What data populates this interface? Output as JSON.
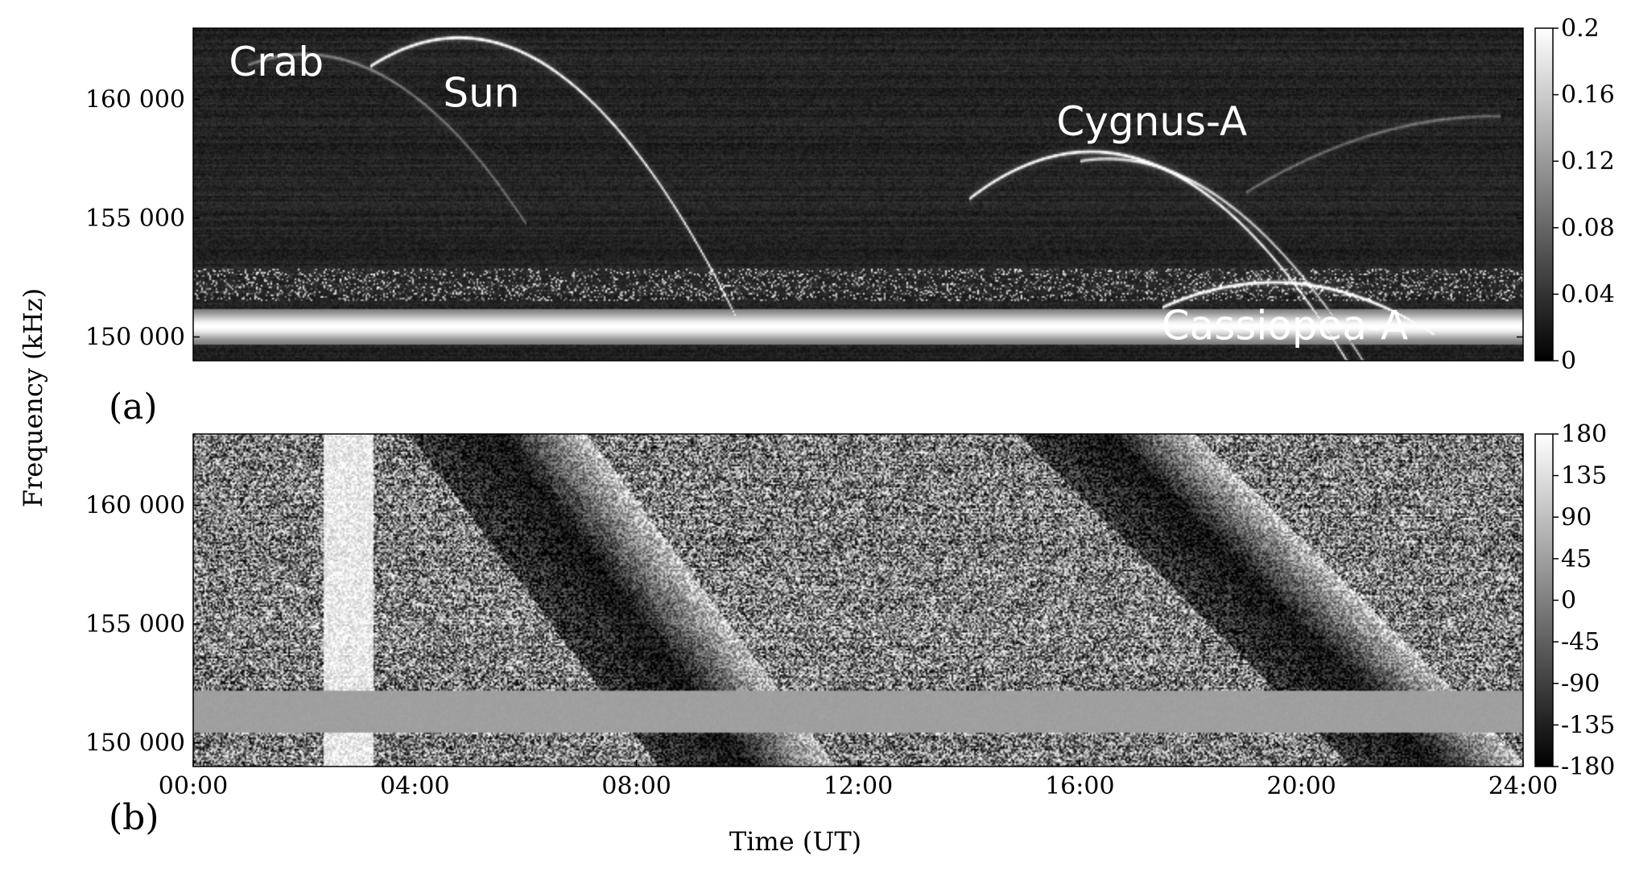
{
  "chart_data": [
    {
      "type": "heatmap",
      "panel_label": "(a)",
      "xlabel": "Time (UT)",
      "ylabel": "Frequency (kHz)",
      "xlim": [
        0,
        24
      ],
      "ylim": [
        149000,
        163000
      ],
      "x_ticks": [
        {
          "value": 0,
          "label": "00:00"
        },
        {
          "value": 4,
          "label": "04:00"
        },
        {
          "value": 8,
          "label": "08:00"
        },
        {
          "value": 12,
          "label": "12:00"
        },
        {
          "value": 16,
          "label": "16:00"
        },
        {
          "value": 20,
          "label": "20:00"
        },
        {
          "value": 24,
          "label": "24:00"
        }
      ],
      "y_ticks": [
        {
          "value": 150000,
          "label": "150 000"
        },
        {
          "value": 155000,
          "label": "155 000"
        },
        {
          "value": 160000,
          "label": "160 000"
        }
      ],
      "colorbar": {
        "range": [
          0,
          0.2
        ],
        "colormap": "grayscale",
        "ticks": [
          {
            "value": 0,
            "label": "0"
          },
          {
            "value": 0.04,
            "label": "0.04"
          },
          {
            "value": 0.08,
            "label": "0.08"
          },
          {
            "value": 0.12,
            "label": "0.12"
          },
          {
            "value": 0.16,
            "label": "0.16"
          },
          {
            "value": 0.2,
            "label": "0.2"
          }
        ]
      },
      "annotations": [
        {
          "text": "Crab",
          "x": 1.5,
          "y": 161000
        },
        {
          "text": "Sun",
          "x": 5.2,
          "y": 159700
        },
        {
          "text": "Cygnus-A",
          "x": 17.3,
          "y": 158500
        },
        {
          "text": "Cassiopea-A",
          "x": 19.7,
          "y": 149900
        }
      ],
      "traces": [
        {
          "name": "Sun",
          "peak_time": 4.8,
          "peak_freq": 162600,
          "half_width_h": 4.7,
          "depth": 10400,
          "t_range": [
            3.2,
            9.8
          ],
          "intensity": 0.2
        },
        {
          "name": "Crab",
          "peak_time": 2.0,
          "peak_freq": 161900,
          "half_width_h": 4.5,
          "depth": 9000,
          "t_range": [
            1.0,
            6.0
          ],
          "intensity": 0.07
        },
        {
          "name": "Cygnus-A",
          "peak_time": 16.2,
          "peak_freq": 157800,
          "half_width_h": 4.0,
          "depth": 6600,
          "t_range": [
            14.0,
            21.5
          ],
          "intensity": 0.19
        },
        {
          "name": "Cygnus-A second",
          "peak_time": 16.5,
          "peak_freq": 157500,
          "half_width_h": 4.3,
          "depth": 7400,
          "t_range": [
            16.0,
            22.3
          ],
          "intensity": 0.14
        },
        {
          "name": "Cassiopea-A",
          "peak_time": 19.5,
          "peak_freq": 152300,
          "half_width_h": 4.0,
          "depth": 4200,
          "t_range": [
            17.5,
            22.4
          ],
          "intensity": 0.2
        },
        {
          "name": "Rising faint",
          "peak_time": 23.5,
          "peak_freq": 159300,
          "half_width_h": 5.2,
          "depth": 4300,
          "t_range": [
            19.0,
            23.6
          ],
          "intensity": 0.06
        }
      ],
      "rfi_bands_khz": [
        {
          "from": 149700,
          "to": 151200,
          "level": 0.2
        },
        {
          "from": 151500,
          "to": 152900,
          "level": 0.05
        }
      ]
    },
    {
      "type": "heatmap",
      "panel_label": "(b)",
      "xlabel": "Time (UT)",
      "ylabel": "Frequency (kHz)",
      "xlim": [
        0,
        24
      ],
      "ylim": [
        149000,
        163000
      ],
      "x_ticks": [
        {
          "value": 0,
          "label": "00:00"
        },
        {
          "value": 4,
          "label": "04:00"
        },
        {
          "value": 8,
          "label": "08:00"
        },
        {
          "value": 12,
          "label": "12:00"
        },
        {
          "value": 16,
          "label": "16:00"
        },
        {
          "value": 20,
          "label": "20:00"
        },
        {
          "value": 24,
          "label": "24:00"
        }
      ],
      "y_ticks": [
        {
          "value": 150000,
          "label": "150 000"
        },
        {
          "value": 155000,
          "label": "155 000"
        },
        {
          "value": 160000,
          "label": "160 000"
        }
      ],
      "colorbar": {
        "range": [
          -180,
          180
        ],
        "colormap": "grayscale",
        "ticks": [
          {
            "value": -180,
            "label": "-180"
          },
          {
            "value": -135,
            "label": "-135"
          },
          {
            "value": -90,
            "label": "-90"
          },
          {
            "value": -45,
            "label": "-45"
          },
          {
            "value": 0,
            "label": "0"
          },
          {
            "value": 45,
            "label": "45"
          },
          {
            "value": 90,
            "label": "90"
          },
          {
            "value": 135,
            "label": "135"
          },
          {
            "value": 180,
            "label": "180"
          }
        ]
      },
      "phase_fronts": [
        {
          "t_at_top": 5.5,
          "t_at_bottom": 10.0
        },
        {
          "t_at_top": 16.5,
          "t_at_bottom": 22.5
        },
        {
          "t_at_top": 2.8,
          "t_at_bottom": 2.8
        }
      ],
      "uniform_band_khz": {
        "from": 150400,
        "to": 152200,
        "level": 45
      }
    }
  ]
}
